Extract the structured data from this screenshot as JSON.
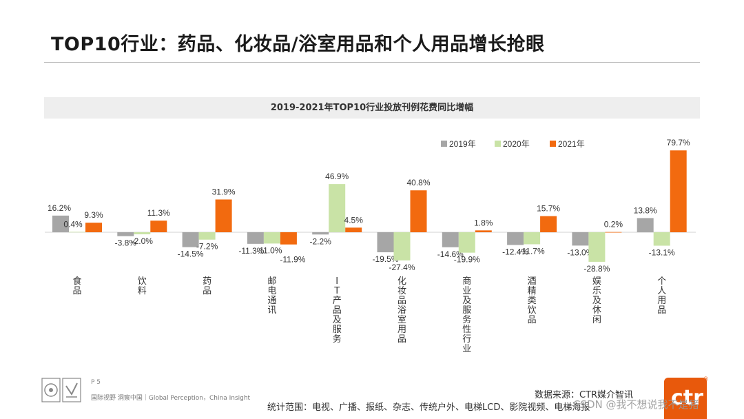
{
  "page_title": "TOP10行业：药品、化妆品/浴室用品和个人用品增长抢眼",
  "colors": {
    "series_2019": "#a6a6a6",
    "series_2020": "#c9e3a6",
    "series_2021": "#f26a0f",
    "brand": "#e8590c"
  },
  "chart_data": {
    "type": "bar",
    "title": "2019-2021年TOP10行业投放刊例花费同比增幅",
    "categories": [
      "食品",
      "饮料",
      "药品",
      "邮电通讯",
      "IT产品及服务",
      "化妆品/浴室用品",
      "商业及服务性行业",
      "酒精类饮品",
      "娱乐及休闲",
      "个人用品"
    ],
    "category_display": [
      "食品",
      "饮料",
      "药品",
      "邮电通讯",
      "IT产品及服务",
      "化妆品浴室用品",
      "商业及服务性行业",
      "酒精类饮品",
      "娱乐及休闲",
      "个人用品"
    ],
    "unit": "%",
    "series": [
      {
        "name": "2019年",
        "values": [
          16.2,
          -3.8,
          -14.5,
          -11.3,
          -2.2,
          -19.5,
          -14.6,
          -12.4,
          -13.0,
          13.8
        ]
      },
      {
        "name": "2020年",
        "values": [
          0.4,
          -2.0,
          -7.2,
          -11.0,
          46.9,
          -27.4,
          -19.9,
          -11.7,
          -28.8,
          -13.1
        ]
      },
      {
        "name": "2021年",
        "values": [
          9.3,
          11.3,
          31.9,
          -11.9,
          4.5,
          40.8,
          1.8,
          15.7,
          0.2,
          79.7
        ]
      }
    ],
    "legend_position": "top-right",
    "grid": false,
    "ylim": [
      -35,
      85
    ]
  },
  "footer": {
    "page_number": "P 5",
    "tagline": "国际视野 洞察中国｜Global Perception，China Insight",
    "source": "数据来源：CTR媒介智讯",
    "scope": "统计范围：电视、广播、报纸、杂志、传统户外、电梯LCD、影院视频、电梯海报",
    "watermark": "CSDN @我不想说我不是猪",
    "brand_logo_text": "ctr",
    "brand_reg_mark": "®"
  }
}
